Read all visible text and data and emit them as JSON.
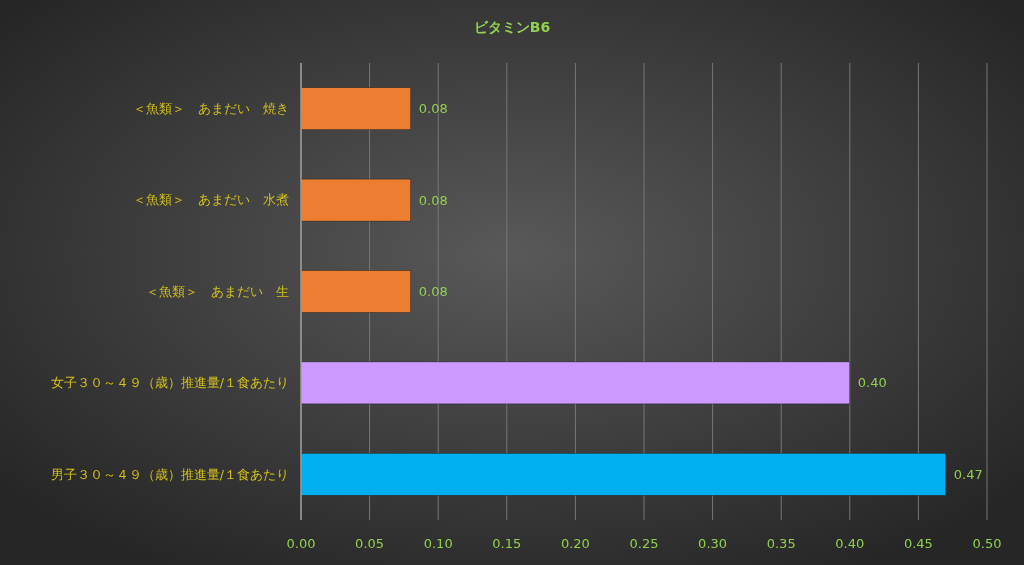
{
  "chart_data": {
    "type": "bar",
    "orientation": "horizontal",
    "title": "ビタミンB6",
    "categories": [
      "＜魚類＞　あまだい　焼き",
      "＜魚類＞　あまだい　水煮",
      "＜魚類＞　あまだい　生",
      "女子３０～４９（歳）推進量/１食あたり",
      "男子３０～４９（歳）推進量/１食あたり"
    ],
    "values": [
      0.08,
      0.08,
      0.08,
      0.4,
      0.47
    ],
    "colors": [
      "#ed7d31",
      "#ed7d31",
      "#ed7d31",
      "#cc99ff",
      "#00b0f0"
    ],
    "xlim": [
      0,
      0.5
    ],
    "xticks": [
      {
        "value": 0,
        "label": "0.00"
      },
      {
        "value": 0.05,
        "label": "0.05"
      },
      {
        "value": 0.1,
        "label": "0.10"
      },
      {
        "value": 0.15,
        "label": "0.15"
      },
      {
        "value": 0.2,
        "label": "0.20"
      },
      {
        "value": 0.25,
        "label": "0.25"
      },
      {
        "value": 0.3,
        "label": "0.30"
      },
      {
        "value": 0.35,
        "label": "0.35"
      },
      {
        "value": 0.4,
        "label": "0.40"
      },
      {
        "value": 0.45,
        "label": "0.45"
      },
      {
        "value": 0.5,
        "label": "0.50"
      }
    ],
    "value_labels": [
      "0.08",
      "0.08",
      "0.08",
      "0.40",
      "0.47"
    ],
    "grid": "x"
  }
}
